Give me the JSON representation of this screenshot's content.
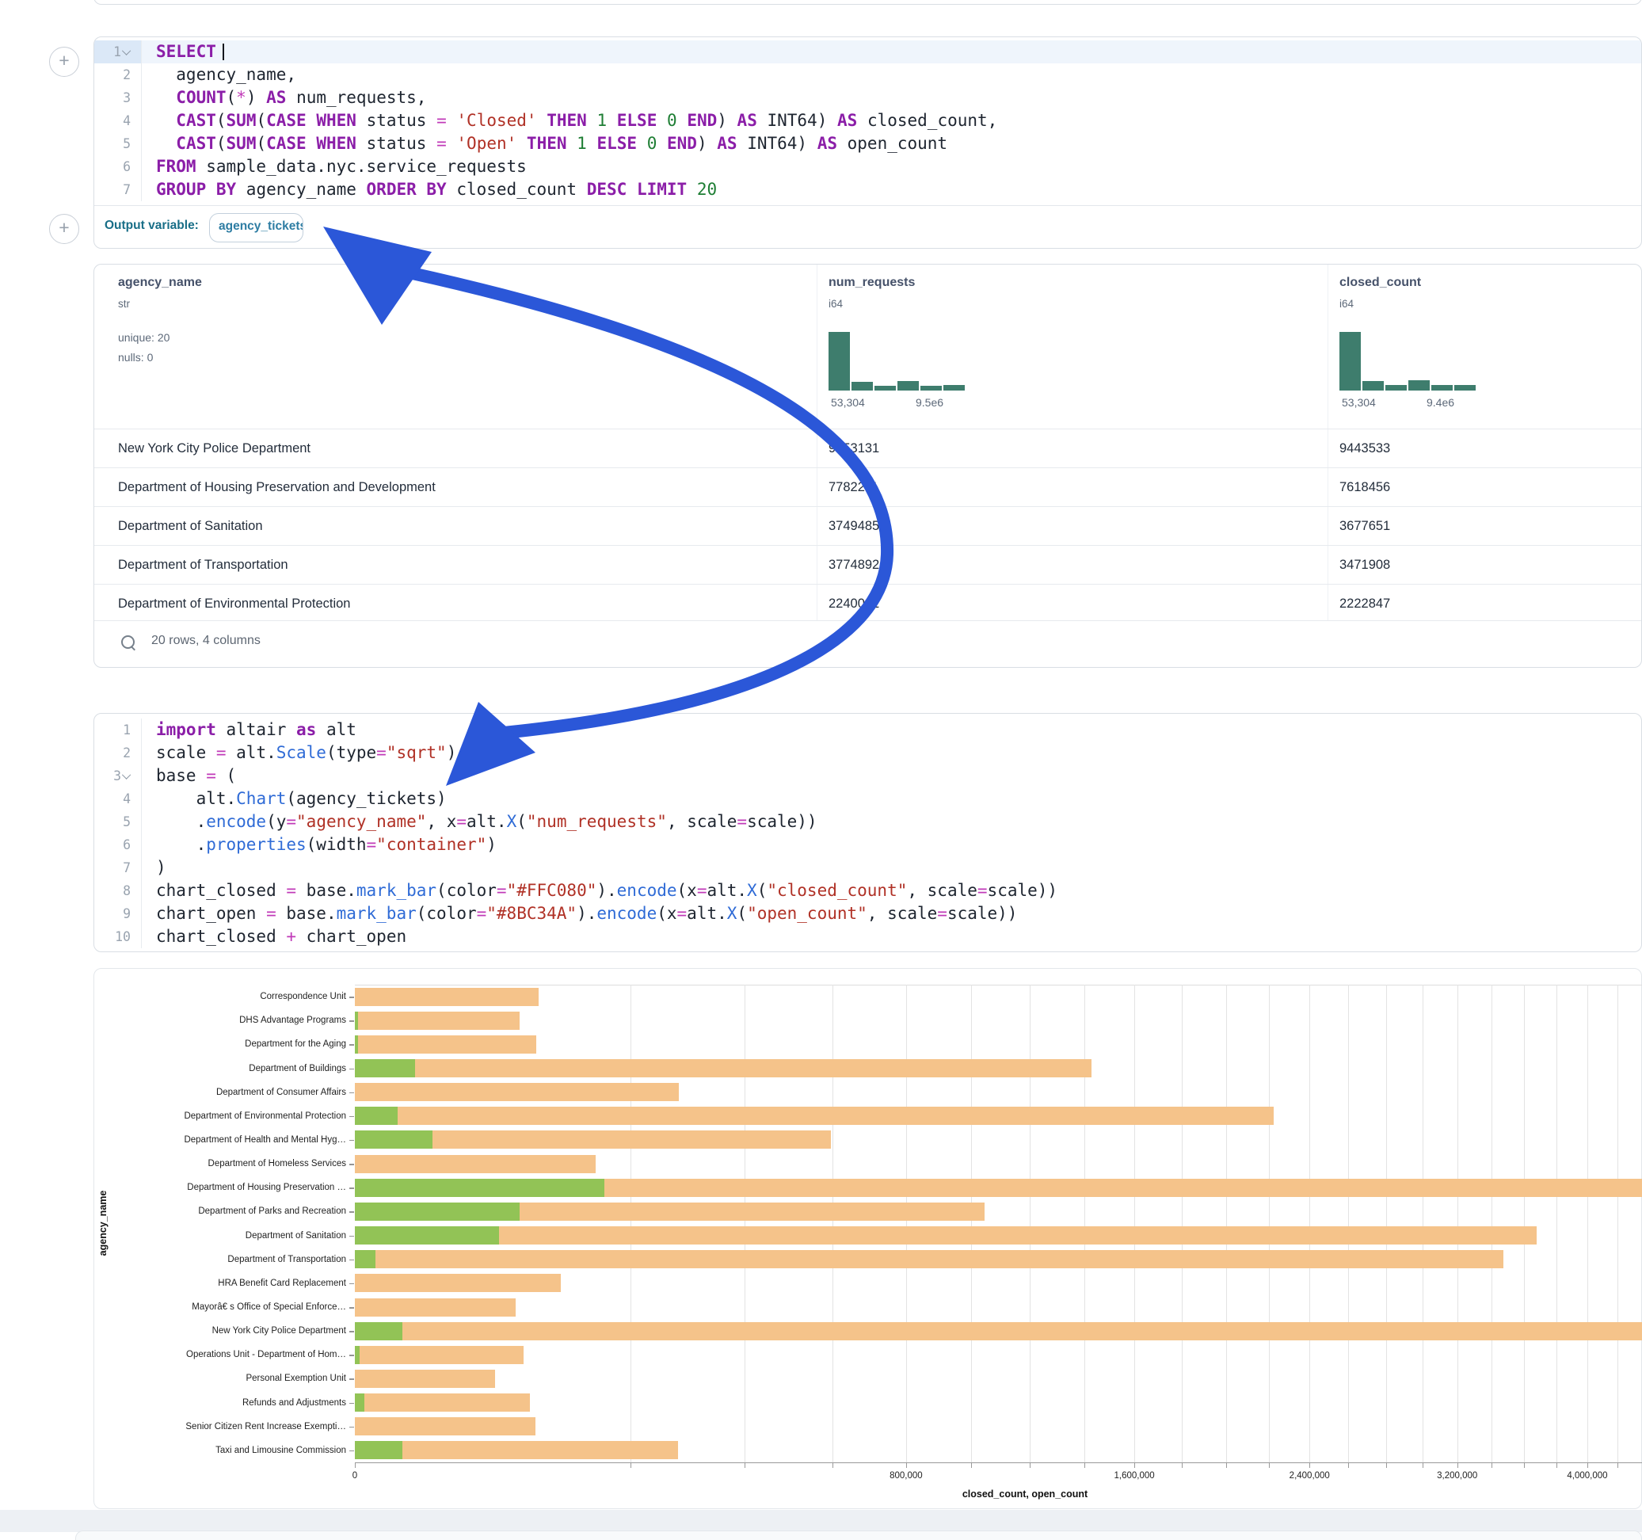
{
  "output_variable": {
    "label": "Output variable:",
    "value": "agency_tickets"
  },
  "sql_cell": {
    "lines": [
      {
        "n": "1",
        "fold": true,
        "hl": true,
        "seg": [
          [
            "k",
            "SELECT"
          ],
          [
            "c",
            ""
          ]
        ]
      },
      {
        "n": "2",
        "seg": [
          [
            "p",
            "  agency_name,"
          ]
        ]
      },
      {
        "n": "3",
        "seg": [
          [
            "p",
            "  "
          ],
          [
            "k",
            "COUNT"
          ],
          [
            "p",
            "("
          ],
          [
            "o",
            "*"
          ],
          [
            "p",
            ") "
          ],
          [
            "k",
            "AS"
          ],
          [
            "p",
            " num_requests,"
          ]
        ]
      },
      {
        "n": "4",
        "seg": [
          [
            "p",
            "  "
          ],
          [
            "k",
            "CAST"
          ],
          [
            "p",
            "("
          ],
          [
            "k",
            "SUM"
          ],
          [
            "p",
            "("
          ],
          [
            "k",
            "CASE"
          ],
          [
            "p",
            " "
          ],
          [
            "k",
            "WHEN"
          ],
          [
            "p",
            " status "
          ],
          [
            "o",
            "="
          ],
          [
            "p",
            " "
          ],
          [
            "s",
            "'Closed'"
          ],
          [
            "p",
            " "
          ],
          [
            "k",
            "THEN"
          ],
          [
            "p",
            " "
          ],
          [
            "n",
            "1"
          ],
          [
            "p",
            " "
          ],
          [
            "k",
            "ELSE"
          ],
          [
            "p",
            " "
          ],
          [
            "n",
            "0"
          ],
          [
            "p",
            " "
          ],
          [
            "k",
            "END"
          ],
          [
            "p",
            ") "
          ],
          [
            "k",
            "AS"
          ],
          [
            "p",
            " INT64) "
          ],
          [
            "k",
            "AS"
          ],
          [
            "p",
            " closed_count,"
          ]
        ]
      },
      {
        "n": "5",
        "seg": [
          [
            "p",
            "  "
          ],
          [
            "k",
            "CAST"
          ],
          [
            "p",
            "("
          ],
          [
            "k",
            "SUM"
          ],
          [
            "p",
            "("
          ],
          [
            "k",
            "CASE"
          ],
          [
            "p",
            " "
          ],
          [
            "k",
            "WHEN"
          ],
          [
            "p",
            " status "
          ],
          [
            "o",
            "="
          ],
          [
            "p",
            " "
          ],
          [
            "s",
            "'Open'"
          ],
          [
            "p",
            " "
          ],
          [
            "k",
            "THEN"
          ],
          [
            "p",
            " "
          ],
          [
            "n",
            "1"
          ],
          [
            "p",
            " "
          ],
          [
            "k",
            "ELSE"
          ],
          [
            "p",
            " "
          ],
          [
            "n",
            "0"
          ],
          [
            "p",
            " "
          ],
          [
            "k",
            "END"
          ],
          [
            "p",
            ") "
          ],
          [
            "k",
            "AS"
          ],
          [
            "p",
            " INT64) "
          ],
          [
            "k",
            "AS"
          ],
          [
            "p",
            " open_count"
          ]
        ]
      },
      {
        "n": "6",
        "seg": [
          [
            "k",
            "FROM"
          ],
          [
            "p",
            " sample_data.nyc.service_requests"
          ]
        ]
      },
      {
        "n": "7",
        "seg": [
          [
            "k",
            "GROUP BY"
          ],
          [
            "p",
            " agency_name "
          ],
          [
            "k",
            "ORDER BY"
          ],
          [
            "p",
            " closed_count "
          ],
          [
            "k",
            "DESC"
          ],
          [
            "p",
            " "
          ],
          [
            "k",
            "LIMIT"
          ],
          [
            "p",
            " "
          ],
          [
            "n",
            "20"
          ]
        ]
      }
    ]
  },
  "python_cell": {
    "lines": [
      {
        "n": "1",
        "seg": [
          [
            "k",
            "import"
          ],
          [
            "p",
            " altair "
          ],
          [
            "k",
            "as"
          ],
          [
            "p",
            " alt"
          ]
        ]
      },
      {
        "n": "2",
        "seg": [
          [
            "p",
            "scale "
          ],
          [
            "o",
            "="
          ],
          [
            "p",
            " alt."
          ],
          [
            "f",
            "Scale"
          ],
          [
            "p",
            "(type"
          ],
          [
            "o",
            "="
          ],
          [
            "s",
            "\"sqrt\""
          ],
          [
            "p",
            ")"
          ]
        ]
      },
      {
        "n": "3",
        "fold": true,
        "seg": [
          [
            "p",
            "base "
          ],
          [
            "o",
            "="
          ],
          [
            "p",
            " ("
          ]
        ]
      },
      {
        "n": "4",
        "seg": [
          [
            "p",
            "    alt."
          ],
          [
            "f",
            "Chart"
          ],
          [
            "p",
            "(agency_tickets)"
          ]
        ]
      },
      {
        "n": "5",
        "seg": [
          [
            "p",
            "    ."
          ],
          [
            "f",
            "encode"
          ],
          [
            "p",
            "(y"
          ],
          [
            "o",
            "="
          ],
          [
            "s",
            "\"agency_name\""
          ],
          [
            "p",
            ", x"
          ],
          [
            "o",
            "="
          ],
          [
            "p",
            "alt."
          ],
          [
            "f",
            "X"
          ],
          [
            "p",
            "("
          ],
          [
            "s",
            "\"num_requests\""
          ],
          [
            "p",
            ", scale"
          ],
          [
            "o",
            "="
          ],
          [
            "p",
            "scale))"
          ]
        ]
      },
      {
        "n": "6",
        "seg": [
          [
            "p",
            "    ."
          ],
          [
            "f",
            "properties"
          ],
          [
            "p",
            "(width"
          ],
          [
            "o",
            "="
          ],
          [
            "s",
            "\"container\""
          ],
          [
            "p",
            ")"
          ]
        ]
      },
      {
        "n": "7",
        "seg": [
          [
            "p",
            ")"
          ]
        ]
      },
      {
        "n": "8",
        "seg": [
          [
            "p",
            "chart_closed "
          ],
          [
            "o",
            "="
          ],
          [
            "p",
            " base."
          ],
          [
            "f",
            "mark_bar"
          ],
          [
            "p",
            "(color"
          ],
          [
            "o",
            "="
          ],
          [
            "s",
            "\"#FFC080\""
          ],
          [
            "p",
            ")."
          ],
          [
            "f",
            "encode"
          ],
          [
            "p",
            "(x"
          ],
          [
            "o",
            "="
          ],
          [
            "p",
            "alt."
          ],
          [
            "f",
            "X"
          ],
          [
            "p",
            "("
          ],
          [
            "s",
            "\"closed_count\""
          ],
          [
            "p",
            ", scale"
          ],
          [
            "o",
            "="
          ],
          [
            "p",
            "scale))"
          ]
        ]
      },
      {
        "n": "9",
        "seg": [
          [
            "p",
            "chart_open "
          ],
          [
            "o",
            "="
          ],
          [
            "p",
            " base."
          ],
          [
            "f",
            "mark_bar"
          ],
          [
            "p",
            "(color"
          ],
          [
            "o",
            "="
          ],
          [
            "s",
            "\"#8BC34A\""
          ],
          [
            "p",
            ")."
          ],
          [
            "f",
            "encode"
          ],
          [
            "p",
            "(x"
          ],
          [
            "o",
            "="
          ],
          [
            "p",
            "alt."
          ],
          [
            "f",
            "X"
          ],
          [
            "p",
            "("
          ],
          [
            "s",
            "\"open_count\""
          ],
          [
            "p",
            ", scale"
          ],
          [
            "o",
            "="
          ],
          [
            "p",
            "scale))"
          ]
        ]
      },
      {
        "n": "10",
        "seg": [
          [
            "p",
            "chart_closed "
          ],
          [
            "o",
            "+"
          ],
          [
            "p",
            " chart_open"
          ]
        ]
      }
    ]
  },
  "table": {
    "columns": [
      {
        "name": "agency_name",
        "type": "str",
        "meta": [
          "unique: 20",
          "nulls: 0"
        ]
      },
      {
        "name": "num_requests",
        "type": "i64",
        "hist": {
          "heights": [
            1,
            0.155,
            0.085,
            0.165,
            0.085,
            0.095
          ],
          "min": "53,304",
          "max": "9.5e6"
        }
      },
      {
        "name": "closed_count",
        "type": "i64",
        "hist": {
          "heights": [
            1,
            0.16,
            0.09,
            0.17,
            0.09,
            0.095
          ],
          "min": "53,304",
          "max": "9.4e6"
        }
      }
    ],
    "rows": [
      [
        "New York City Police Department",
        "9453131",
        "9443533"
      ],
      [
        "Department of Housing Preservation and Development",
        "7782211",
        "7618456"
      ],
      [
        "Department of Sanitation",
        "3749485",
        "3677651"
      ],
      [
        "Department of Transportation",
        "3774892",
        "3471908"
      ],
      [
        "Department of Environmental Protection",
        "2240041",
        "2222847"
      ]
    ],
    "footer": "20 rows, 4 columns"
  },
  "chart_data": {
    "type": "bar",
    "orientation": "horizontal",
    "x_scale": "sqrt",
    "xlabel": "closed_count, open_count",
    "ylabel": "agency_name",
    "grid": true,
    "xlim": [
      0,
      4200000
    ],
    "x_tick_values": [
      0,
      800000,
      1600000,
      2400000,
      3200000,
      4000000
    ],
    "x_tick_labels": [
      "0",
      "800,000",
      "1,600,000",
      "2,400,000",
      "3,200,000",
      "4,000,000"
    ],
    "minor_tick_step": 200000,
    "categories": [
      "Correspondence Unit",
      "DHS Advantage Programs",
      "Department for the Aging",
      "Department of Buildings",
      "Department of Consumer Affairs",
      "Department of Environmental Protection",
      "Department of Health and Mental Hyg…",
      "Department of Homeless Services",
      "Department of Housing Preservation …",
      "Department of Parks and Recreation",
      "Department of Sanitation",
      "Department of Transportation",
      "HRA Benefit Card Replacement",
      "Mayorâ€ s Office of Special Enforce…",
      "New York City Police Department",
      "Operations Unit - Department of Hom…",
      "Personal Exemption Unit",
      "Refunds and Adjustments",
      "Senior Citizen Rent Increase Exempti…",
      "Taxi and Limousine Commission"
    ],
    "series": [
      {
        "name": "closed_count",
        "color": "#F5C38A",
        "values": [
          89000,
          71500,
          87000,
          1430000,
          276000,
          2222847,
          597000,
          153000,
          7618456,
          1044000,
          3677651,
          3471908,
          112000,
          68000,
          9443533,
          75000,
          51700,
          81000,
          86000,
          275000
        ]
      },
      {
        "name": "open_count",
        "color": "#92C356",
        "values": [
          0,
          30,
          30,
          9500,
          0,
          4800,
          16000,
          0,
          163755,
          71500,
          55000,
          1100,
          0,
          0,
          5900,
          55,
          0,
          240,
          0,
          5900
        ]
      }
    ]
  },
  "colors": {
    "arrow_blue": "#2B57D8",
    "histogram_teal": "#3e7d6d",
    "bar_closed": "#F5C38A",
    "bar_open": "#92C356"
  }
}
